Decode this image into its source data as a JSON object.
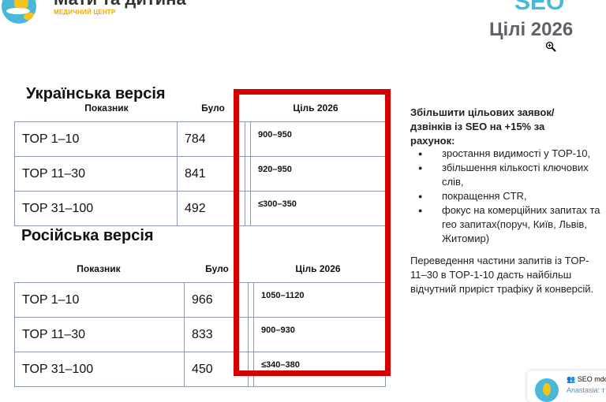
{
  "header": {
    "brand_name": "Мати та дитина",
    "brand_subtitle": "МЕДИЧНИЙ ЦЕНТР",
    "seo_title": "SEO",
    "goals_title": "Цілі 2026"
  },
  "colors": {
    "brand_blue": "#4bb8d9",
    "brand_yellow": "#f6c21c",
    "highlight_red": "#d40000"
  },
  "ukrainian": {
    "title": "Українська версія",
    "headers": [
      "Показник",
      "Було",
      "Ціль 2026"
    ],
    "rows": [
      {
        "metric": "TOP 1–10",
        "was": "784",
        "goal": "900–950"
      },
      {
        "metric": "TOP 11–30",
        "was": "841",
        "goal": "920–950"
      },
      {
        "metric": "TOP 31–100",
        "was": "492",
        "goal": "≤300–350"
      }
    ]
  },
  "russian": {
    "title": "Російська версія",
    "headers": [
      "Показник",
      "Було",
      "Ціль 2026"
    ],
    "rows": [
      {
        "metric": "TOP 1–10",
        "was": "966",
        "goal": "1050–1120"
      },
      {
        "metric": "TOP 11–30",
        "was": "833",
        "goal": "900–930"
      },
      {
        "metric": "TOP 31–100",
        "was": "450",
        "goal": "≤340–380"
      }
    ]
  },
  "notes": {
    "heading": "Збільшити цільових заявок/дзвінків із SEO на +15% за рахунок:",
    "bullets": [
      "зростання видимості у TOP-10,",
      "збільшення кількості ключових слів,",
      "покращення CTR,",
      "фокус на комерційних запитах та гео запитах(поруч, Київ, Львів, Житомир)"
    ],
    "conclusion": "Переведення частини запитів із TOP-11–30 в TOP-1-10 дасть найбільш відчутний приріст трафіку й конверсій."
  },
  "notification": {
    "group": "SEO mdc",
    "sender": "Anastasia:",
    "preview": "т"
  }
}
